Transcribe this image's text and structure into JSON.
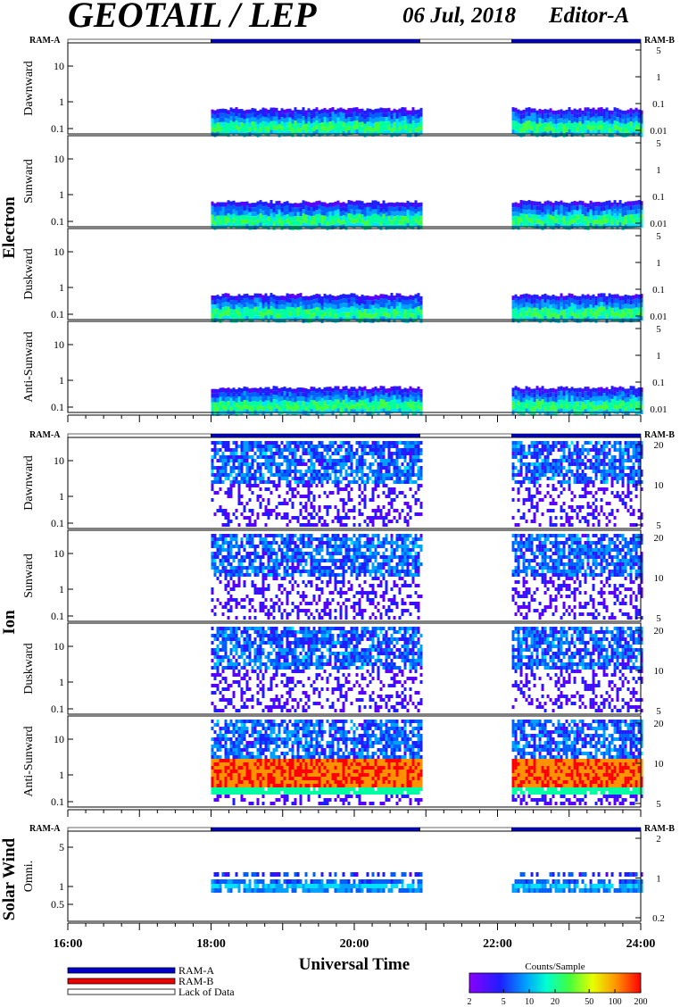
{
  "header": {
    "title": "GEOTAIL / LEP",
    "date": "06 Jul, 2018",
    "editor": "Editor-A"
  },
  "colors": {
    "ram_a": "#0000cc",
    "ram_b": "#ee0000",
    "lack": "#ffffff",
    "frame": "#000000"
  },
  "chart_data": {
    "type": "heatmap",
    "x_axis": {
      "label": "Universal Time",
      "range": [
        "16:00",
        "24:00"
      ],
      "tick_labels": [
        "16:00",
        "18:00",
        "20:00",
        "22:00",
        "24:00"
      ]
    },
    "coverage": [
      {
        "mode": "Lack of Data",
        "start": "16:00",
        "end": "18:00"
      },
      {
        "mode": "RAM-A",
        "start": "18:00",
        "end": "20:55"
      },
      {
        "mode": "Lack of Data",
        "start": "20:55",
        "end": "22:12"
      },
      {
        "mode": "RAM-A",
        "start": "22:12",
        "end": "24:00"
      }
    ],
    "groups": [
      {
        "name": "Electron",
        "mode_left": "RAM-A",
        "mode_right": "RAM-B",
        "panels": [
          {
            "label": "Dawnward",
            "left_ticks": [
              "10",
              "1",
              "0.1"
            ],
            "right_ticks": [
              "5",
              "1",
              "0.1",
              "0.01"
            ]
          },
          {
            "label": "Sunward",
            "left_ticks": [
              "10",
              "1",
              "0.1"
            ],
            "right_ticks": [
              "5",
              "1",
              "0.1",
              "0.01"
            ]
          },
          {
            "label": "Duskward",
            "left_ticks": [
              "10",
              "1",
              "0.1"
            ],
            "right_ticks": [
              "5",
              "1",
              "0.1",
              "0.01"
            ]
          },
          {
            "label": "Anti-Sunward",
            "left_ticks": [
              "10",
              "1",
              "0.1"
            ],
            "right_ticks": [
              "5",
              "1",
              "0.1",
              "0.01"
            ]
          }
        ]
      },
      {
        "name": "Ion",
        "mode_left": "RAM-A",
        "mode_right": "RAM-B",
        "panels": [
          {
            "label": "Dawnward",
            "left_ticks": [
              "10",
              "1",
              "0.1"
            ],
            "right_ticks": [
              "20",
              "10",
              "5"
            ]
          },
          {
            "label": "Sunward",
            "left_ticks": [
              "10",
              "1",
              "0.1"
            ],
            "right_ticks": [
              "20",
              "10",
              "5"
            ]
          },
          {
            "label": "Duskward",
            "left_ticks": [
              "10",
              "1",
              "0.1"
            ],
            "right_ticks": [
              "20",
              "10",
              "5"
            ]
          },
          {
            "label": "Anti-Sunward",
            "left_ticks": [
              "10",
              "1",
              "0.1"
            ],
            "right_ticks": [
              "20",
              "10",
              "5"
            ]
          }
        ]
      },
      {
        "name": "Solar Wind",
        "mode_left": "RAM-A",
        "mode_right": "RAM-B",
        "panels": [
          {
            "label": "Omni.",
            "left_ticks": [
              "5",
              "1",
              "0.5"
            ],
            "right_ticks": [
              "2",
              "1",
              "0.2"
            ]
          }
        ]
      }
    ],
    "legend": {
      "items": [
        "RAM-A",
        "RAM-B",
        "Lack of Data"
      ]
    },
    "colorbar": {
      "title": "Counts/Sample",
      "tick_labels": [
        "2",
        "5",
        "10",
        "20",
        "50",
        "100",
        "200"
      ],
      "scale": "log",
      "range": [
        2,
        200
      ]
    }
  }
}
